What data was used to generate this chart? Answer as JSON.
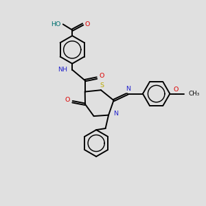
{
  "bg_color": "#e0e0e0",
  "atom_colors": {
    "C": "#000000",
    "N": "#2222cc",
    "O": "#dd0000",
    "S": "#bbaa00",
    "H": "#007070"
  },
  "bond_color": "#000000",
  "bond_width": 1.4,
  "figsize": [
    3.0,
    3.0
  ],
  "dpi": 100,
  "xlim": [
    0.0,
    10.0
  ],
  "ylim": [
    0.5,
    10.5
  ]
}
